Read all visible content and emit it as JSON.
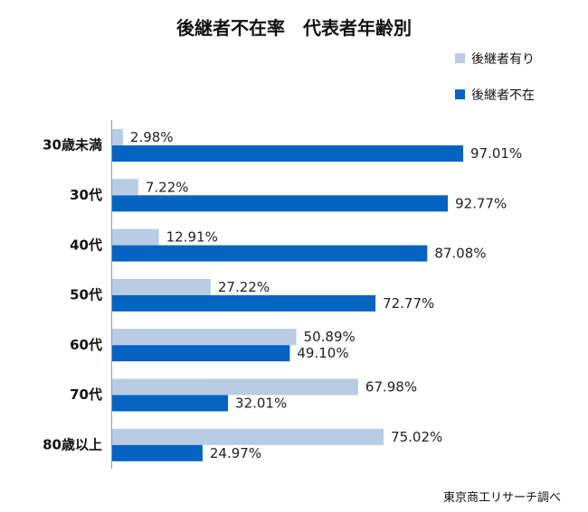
{
  "chart_data": {
    "type": "bar",
    "orientation": "horizontal",
    "title": "後継者不在率　代表者年齢別",
    "categories": [
      "30歳未満",
      "30代",
      "40代",
      "50代",
      "60代",
      "70代",
      "80歳以上"
    ],
    "series": [
      {
        "name": "後継者有り",
        "values": [
          2.98,
          7.22,
          12.91,
          27.22,
          50.89,
          67.98,
          75.02
        ],
        "color": "#b8cce4"
      },
      {
        "name": "後継者不在",
        "values": [
          97.01,
          92.77,
          87.08,
          72.77,
          49.1,
          32.01,
          24.97
        ],
        "color": "#0563c1"
      }
    ],
    "data_labels": [
      [
        "2.98%",
        "7.22%",
        "12.91%",
        "27.22%",
        "50.89%",
        "67.98%",
        "75.02%"
      ],
      [
        "97.01%",
        "92.77%",
        "87.08%",
        "72.77%",
        "49.10%",
        "32.01%",
        "24.97%"
      ]
    ],
    "xlim": [
      0,
      100
    ],
    "legend": "top-right",
    "grid": false
  },
  "source": "東京商工リサーチ調べ"
}
